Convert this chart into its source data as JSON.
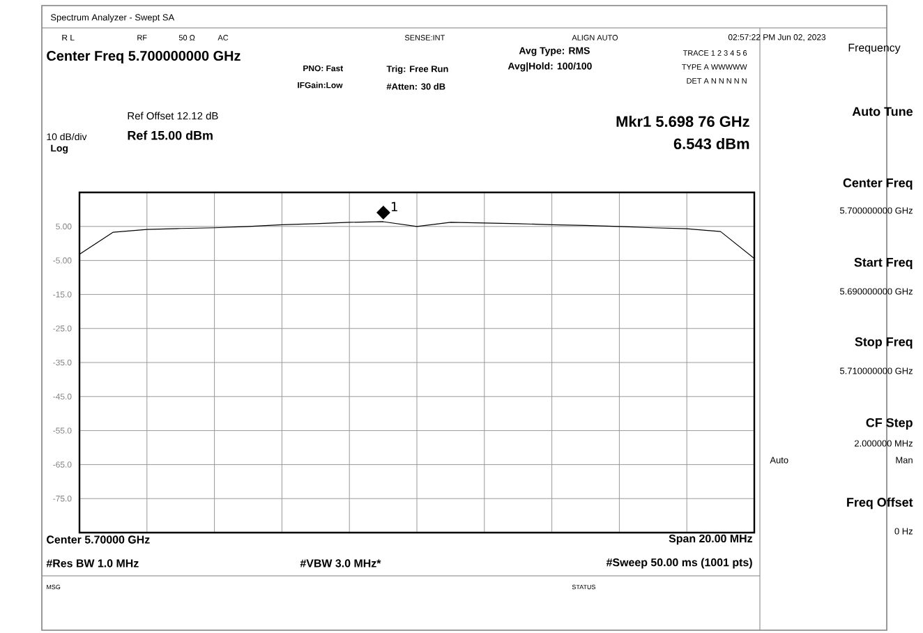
{
  "chart_data": {
    "type": "line",
    "ylim": [
      -85,
      15
    ],
    "categories": [
      null,
      null,
      null,
      null,
      null,
      null,
      null,
      null,
      null,
      null,
      null,
      null,
      null,
      null,
      null,
      null,
      null,
      null,
      null,
      null,
      null
    ],
    "yticks": [
      {
        "value": 5,
        "label": "5.00"
      },
      {
        "value": -5,
        "label": "-5.00"
      },
      {
        "value": -15,
        "label": "-15.0"
      },
      {
        "value": -25,
        "label": "-25.0"
      },
      {
        "value": -35,
        "label": "-35.0"
      },
      {
        "value": -45,
        "label": "-45.0"
      },
      {
        "value": -55,
        "label": "-55.0"
      },
      {
        "value": -65,
        "label": "-65.0"
      },
      {
        "value": -75,
        "label": "-75.0"
      }
    ],
    "tick_labels": "y",
    "grid": true,
    "marker": "none",
    "line_style": "solid",
    "series": [
      {
        "color": "#000000",
        "values": [
          -3.2,
          3.3,
          4.1,
          4.4,
          4.6,
          5.0,
          5.5,
          5.8,
          6.2,
          6.4,
          5.0,
          6.2,
          6.0,
          5.8,
          5.5,
          5.3,
          5.0,
          4.6,
          4.3,
          3.5,
          -4.4
        ]
      }
    ],
    "annotations": [
      "Spectrum Analyzer - Swept SA",
      "R L",
      "RF",
      "50 Ω",
      "AC",
      "SENSE:INT",
      "ALIGN AUTO",
      "02:57:22 PM Jun 02, 2023",
      "Center Freq 5.700000000 GHz",
      "PNO: Fast",
      "IFGain:Low",
      "Trig: Free Run",
      "#Atten: 30 dB",
      "Avg Type: RMS",
      "Avg|Hold: 100/100",
      "TRACE 1 2 3 4 5 6",
      "TYPE A WWWWW",
      "DET A N N N N N",
      "Frequency",
      "Mkr1 5.698 76 GHz",
      "6.543 dBm",
      "Ref Offset 12.12 dB",
      "Ref 15.00 dBm",
      "10 dB/div",
      "Log",
      "Center 5.70000 GHz",
      "Span 20.00 MHz",
      "#Res BW 1.0 MHz",
      "#VBW 3.0 MHz*",
      "#Sweep  50.00 ms (1001 pts)",
      "MSG",
      "STATUS",
      "Auto Tune",
      "Center Freq",
      "5.700000000 GHz",
      "Start Freq",
      "5.690000000 GHz",
      "Stop Freq",
      "5.710000000 GHz",
      "CF Step",
      "2.000000 MHz",
      "Auto",
      "Man",
      "Freq Offset",
      "0 Hz",
      {
        "text": "◆$^{1}$",
        "y": 6.543
      }
    ]
  }
}
